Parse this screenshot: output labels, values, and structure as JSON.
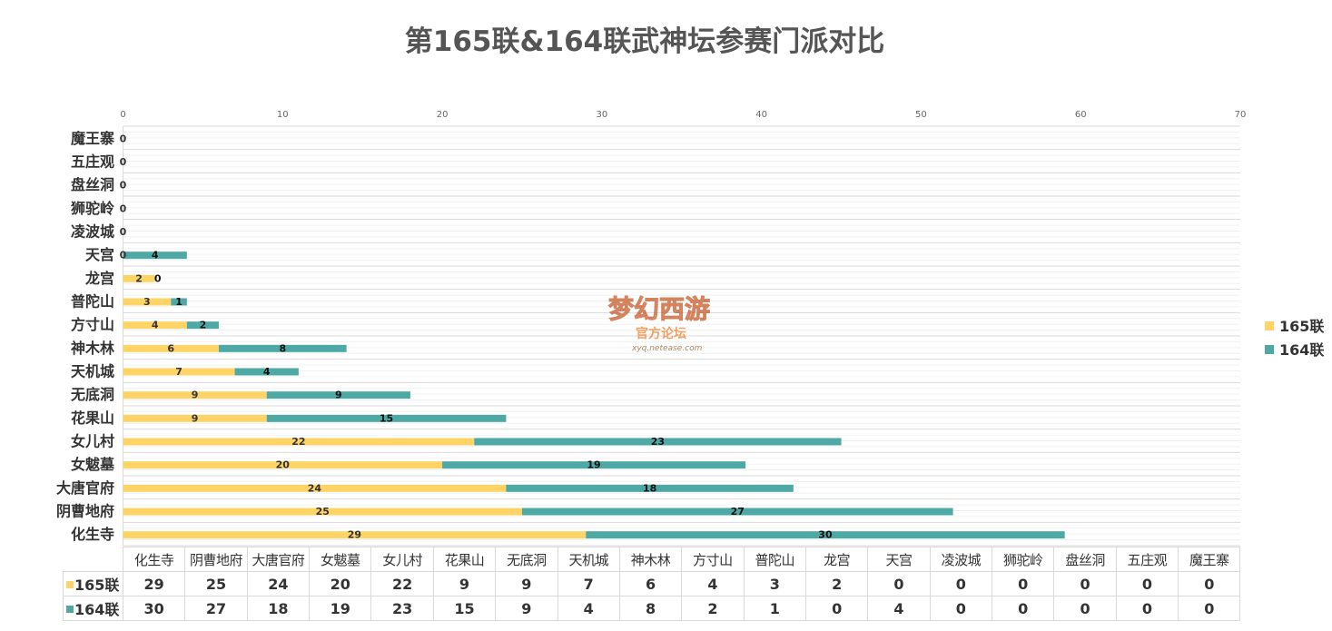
{
  "chart_data": {
    "type": "bar",
    "stacked": true,
    "orientation": "horizontal",
    "title": "第165联&164联武神坛参赛门派对比",
    "categories": [
      "化生寺",
      "阴曹地府",
      "大唐官府",
      "女魃墓",
      "女儿村",
      "花果山",
      "无底洞",
      "天机城",
      "神木林",
      "方寸山",
      "普陀山",
      "龙宫",
      "天宫",
      "凌波城",
      "狮驼岭",
      "盘丝洞",
      "五庄观",
      "魔王寨"
    ],
    "series": [
      {
        "name": "165联",
        "color": "#ffd466",
        "values": [
          29,
          25,
          24,
          20,
          22,
          9,
          9,
          7,
          6,
          4,
          3,
          2,
          0,
          0,
          0,
          0,
          0,
          0
        ]
      },
      {
        "name": "164联",
        "color": "#4ea9a4",
        "values": [
          30,
          27,
          18,
          19,
          23,
          15,
          9,
          4,
          8,
          2,
          1,
          0,
          4,
          0,
          0,
          0,
          0,
          0
        ]
      }
    ],
    "xlim": [
      0,
      70
    ],
    "xticks": [
      0,
      10,
      20,
      30,
      40,
      50,
      60,
      70
    ],
    "grid": true,
    "legend_position": "right",
    "data_table": true
  },
  "watermark": {
    "brand": "梦幻西游",
    "subtitle": "官方论坛",
    "url": "xyq.netease.com"
  }
}
